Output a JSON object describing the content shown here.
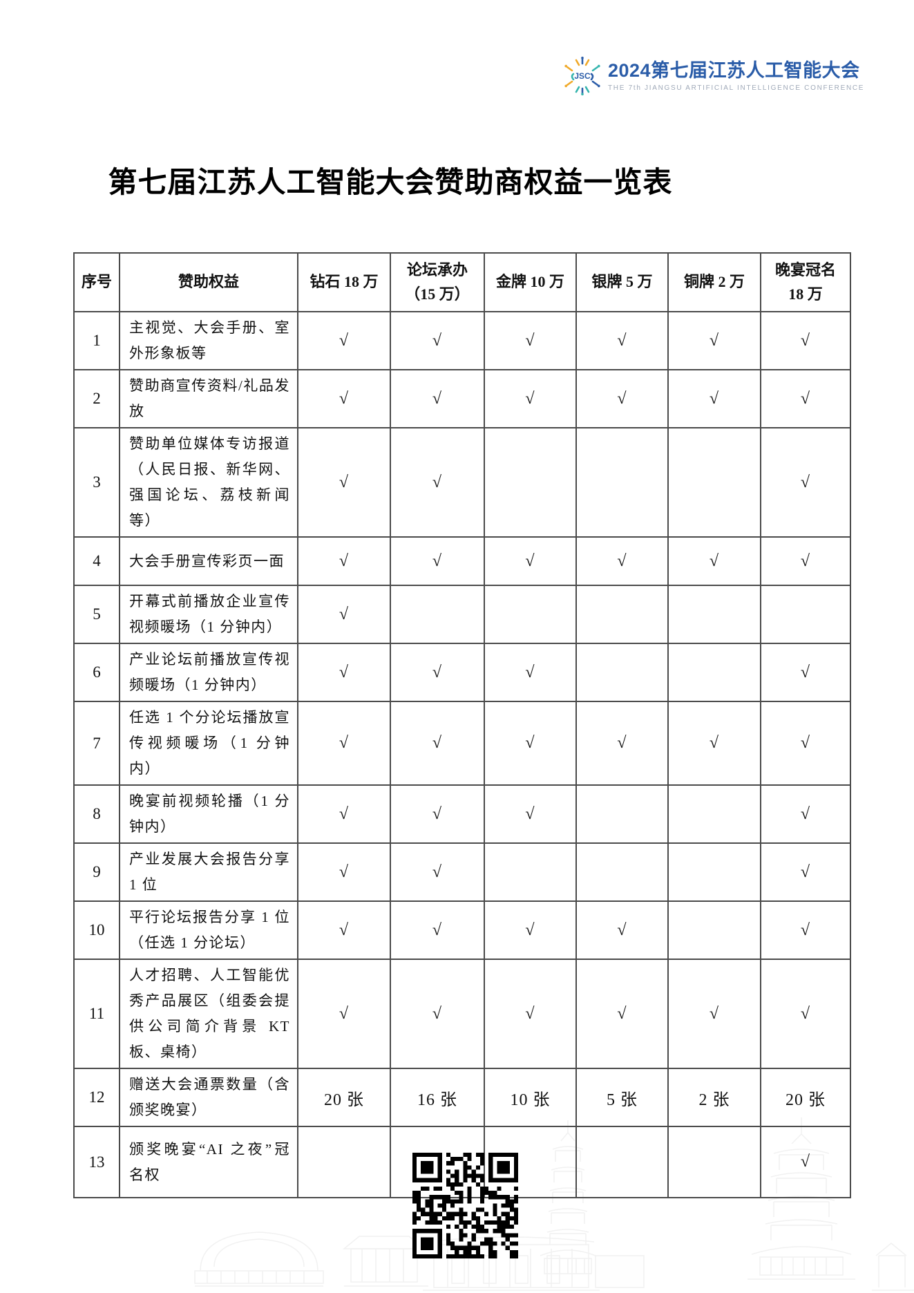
{
  "logo": {
    "icon": "jsc-starburst-icon",
    "title": "2024第七届江苏人工智能大会",
    "subtitle": "THE 7th JIANGSU ARTIFICIAL INTELLIGENCE CONFERENCE",
    "colors": {
      "blue": "#2A5CA8",
      "teal": "#35B5AE",
      "yellow": "#F0A928",
      "subtitle_gray": "#9FA9B8"
    }
  },
  "document": {
    "title": "第七届江苏人工智能大会赞助商权益一览表"
  },
  "table": {
    "headers": {
      "col_index": "序号",
      "col_benefit": "赞助权益",
      "col_diamond": "钻石 18 万",
      "col_forum_line1": "论坛承办",
      "col_forum_line2": "（15 万）",
      "col_gold": "金牌 10 万",
      "col_silver": "银牌 5 万",
      "col_bronze": "铜牌 2 万",
      "col_banquet_line1": "晚宴冠名",
      "col_banquet_line2": "18 万"
    },
    "check_symbol": "√",
    "rows": [
      {
        "no": "1",
        "benefit": "主视觉、大会手册、室外形象板等",
        "cells": [
          "√",
          "√",
          "√",
          "√",
          "√",
          "√"
        ]
      },
      {
        "no": "2",
        "benefit": "赞助商宣传资料/礼品发放",
        "cells": [
          "√",
          "√",
          "√",
          "√",
          "√",
          "√"
        ]
      },
      {
        "no": "3",
        "benefit": "赞助单位媒体专访报道（人民日报、新华网、强国论坛、荔枝新闻等）",
        "cells": [
          "√",
          "√",
          "",
          "",
          "",
          "√"
        ]
      },
      {
        "no": "4",
        "benefit": "大会手册宣传彩页一面",
        "cells": [
          "√",
          "√",
          "√",
          "√",
          "√",
          "√"
        ]
      },
      {
        "no": "5",
        "benefit": "开幕式前播放企业宣传视频暖场（1 分钟内）",
        "cells": [
          "√",
          "",
          "",
          "",
          "",
          ""
        ]
      },
      {
        "no": "6",
        "benefit": "产业论坛前播放宣传视频暖场（1 分钟内）",
        "cells": [
          "√",
          "√",
          "√",
          "",
          "",
          "√"
        ]
      },
      {
        "no": "7",
        "benefit": "任选 1 个分论坛播放宣传视频暖场（1 分钟内）",
        "cells": [
          "√",
          "√",
          "√",
          "√",
          "√",
          "√"
        ]
      },
      {
        "no": "8",
        "benefit": "晚宴前视频轮播（1 分钟内）",
        "cells": [
          "√",
          "√",
          "√",
          "",
          "",
          "√"
        ]
      },
      {
        "no": "9",
        "benefit": "产业发展大会报告分享 1 位",
        "cells": [
          "√",
          "√",
          "",
          "",
          "",
          "√"
        ]
      },
      {
        "no": "10",
        "benefit": "平行论坛报告分享 1 位（任选 1 分论坛）",
        "cells": [
          "√",
          "√",
          "√",
          "√",
          "",
          "√"
        ]
      },
      {
        "no": "11",
        "benefit": "人才招聘、人工智能优秀产品展区（组委会提供公司简介背景 KT 板、桌椅）",
        "cells": [
          "√",
          "√",
          "√",
          "√",
          "√",
          "√"
        ]
      },
      {
        "no": "12",
        "benefit": "赠送大会通票数量（含颁奖晚宴）",
        "cells": [
          "20 张",
          "16 张",
          "10 张",
          "5 张",
          "2 张",
          "20 张"
        ]
      },
      {
        "no": "13",
        "benefit": "颁奖晚宴“AI 之夜”冠名权",
        "cells": [
          "",
          "",
          "",
          "",
          "",
          "√"
        ]
      }
    ]
  },
  "icons": {
    "qr_code": "qr-code",
    "watermark": "city-skyline-watermark"
  }
}
